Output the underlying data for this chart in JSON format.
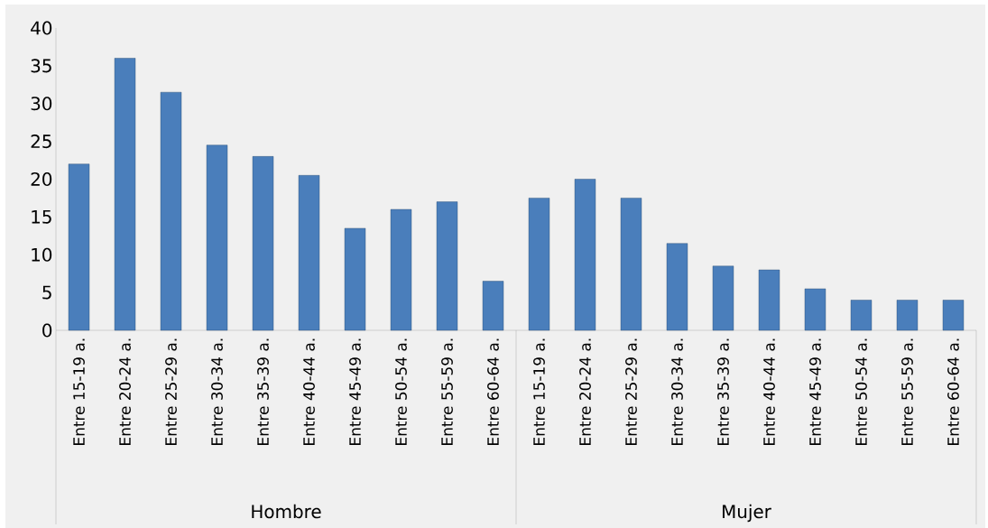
{
  "chart_data": {
    "type": "bar",
    "categories": [
      "Entre 15-19 a.",
      "Entre 20-24 a.",
      "Entre 25-29 a.",
      "Entre 30-34 a.",
      "Entre 35-39 a.",
      "Entre 40-44 a.",
      "Entre 45-49 a.",
      "Entre 50-54 a.",
      "Entre 55-59 a.",
      "Entre 60-64 a.",
      "Entre 15-19 a.",
      "Entre 20-24 a.",
      "Entre 25-29 a.",
      "Entre 30-34 a.",
      "Entre 35-39 a.",
      "Entre 40-44 a.",
      "Entre 45-49 a.",
      "Entre 50-54 a.",
      "Entre 55-59 a.",
      "Entre 60-64 a."
    ],
    "values": [
      22,
      36,
      31.5,
      24.5,
      23,
      20.5,
      13.5,
      16,
      17,
      6.5,
      17.5,
      20,
      17.5,
      11.5,
      8.5,
      8,
      5.5,
      4,
      4,
      4
    ],
    "color": "#4a7ebb",
    "ylim": [
      0,
      40
    ],
    "yticks": [
      0,
      5,
      10,
      15,
      20,
      25,
      30,
      35,
      40
    ],
    "annotations": [
      "Hombre",
      "Mujer"
    ]
  }
}
